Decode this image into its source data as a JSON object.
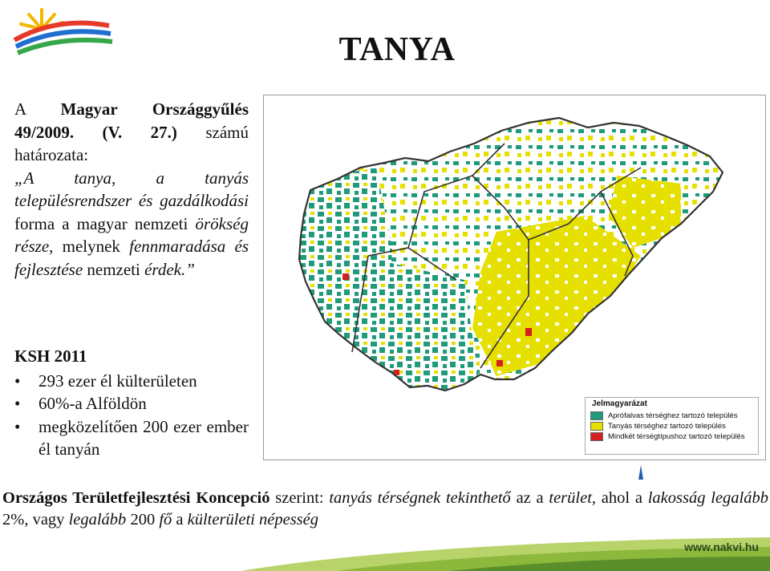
{
  "slide": {
    "title": "TANYA"
  },
  "intro": {
    "p1": "A ",
    "p2": "Magyar Országgyűlés 49/2009. (V. 27.)",
    "p3": " számú határozata:",
    "p4": "„A tanya, a tanyás településrendszer és gazdálkodási",
    "p5": " forma a magyar nemzeti ",
    "p6": "örökség része,",
    "p7": " melynek ",
    "p8": "fennmaradása és fejlesztése",
    "p9": " nemzeti ",
    "p10": "érdek.”"
  },
  "ksh": {
    "heading": "KSH 2011",
    "items": [
      "293 ezer él külterületen",
      "60%-a Alföldön",
      "megközelítően 200 ezer ember él tanyán"
    ]
  },
  "legend": {
    "title": "Jelmagyarázat",
    "items": [
      {
        "label": "Aprófalvas térséghez tartozó település",
        "color": "#1f9a7a"
      },
      {
        "label": "Tanyás térséghez tartozó település",
        "color": "#e6e000"
      },
      {
        "label": "Mindkét térségtípushoz tartozó település",
        "color": "#d42020"
      }
    ]
  },
  "okt": {
    "b1": "Országos Területfejlesztési Koncepció",
    "t1": " szerint: ",
    "i1": "tanyás térségnek tekinthető",
    "t2": " az a ",
    "i2": "terület,",
    "t3": " ahol a ",
    "i3": "lakosság legalább",
    "t4": " 2%, vagy ",
    "i4": "legalább",
    "t5": " 200 ",
    "i5": "fő",
    "t6": " a ",
    "i6": "külterületi népesség"
  },
  "footer": {
    "site": "www.nakvi.hu"
  }
}
